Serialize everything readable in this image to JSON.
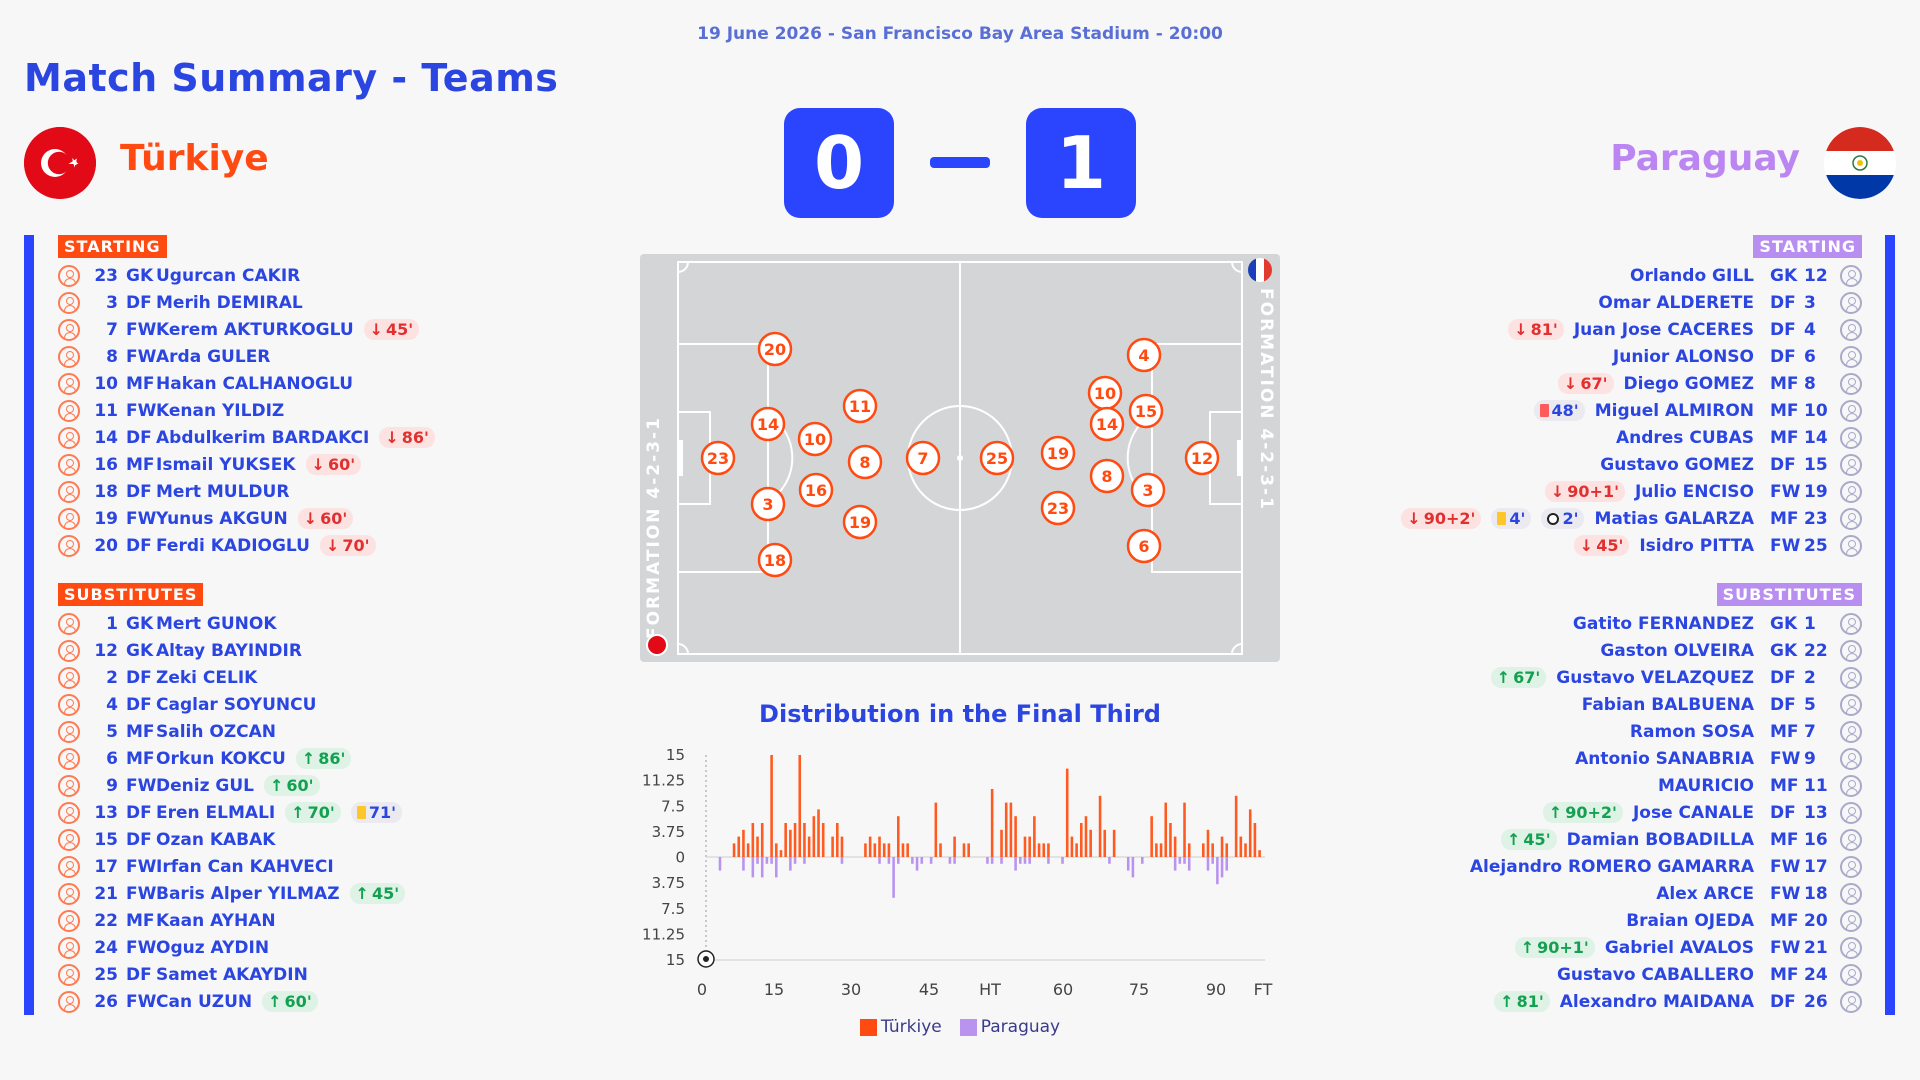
{
  "header": {
    "subtitle": "19 June 2026 - San Francisco Bay Area Stadium - 20:00",
    "title": "Match Summary - Teams"
  },
  "home": {
    "name": "Türkiye",
    "score": "0",
    "color": "#ff4b12",
    "formation_label": "FORMATION 4-2-3-1",
    "starting_label": "STARTING",
    "subs_label": "SUBSTITUTES",
    "starting": [
      {
        "num": "23",
        "pos": "GK",
        "name": "Ugurcan CAKIR",
        "events": []
      },
      {
        "num": "3",
        "pos": "DF",
        "name": "Merih DEMIRAL",
        "events": []
      },
      {
        "num": "7",
        "pos": "FW",
        "name": "Kerem AKTURKOGLU",
        "events": [
          {
            "type": "off",
            "text": "45'"
          }
        ]
      },
      {
        "num": "8",
        "pos": "FW",
        "name": "Arda GULER",
        "events": []
      },
      {
        "num": "10",
        "pos": "MF",
        "name": "Hakan CALHANOGLU",
        "events": []
      },
      {
        "num": "11",
        "pos": "FW",
        "name": "Kenan YILDIZ",
        "events": []
      },
      {
        "num": "14",
        "pos": "DF",
        "name": "Abdulkerim BARDAKCI",
        "events": [
          {
            "type": "off",
            "text": "86'"
          }
        ]
      },
      {
        "num": "16",
        "pos": "MF",
        "name": "Ismail YUKSEK",
        "events": [
          {
            "type": "off",
            "text": "60'"
          }
        ]
      },
      {
        "num": "18",
        "pos": "DF",
        "name": "Mert MULDUR",
        "events": []
      },
      {
        "num": "19",
        "pos": "FW",
        "name": "Yunus AKGUN",
        "events": [
          {
            "type": "off",
            "text": "60'"
          }
        ]
      },
      {
        "num": "20",
        "pos": "DF",
        "name": "Ferdi KADIOGLU",
        "events": [
          {
            "type": "off",
            "text": "70'"
          }
        ]
      }
    ],
    "subs": [
      {
        "num": "1",
        "pos": "GK",
        "name": "Mert GUNOK",
        "events": []
      },
      {
        "num": "12",
        "pos": "GK",
        "name": "Altay BAYINDIR",
        "events": []
      },
      {
        "num": "2",
        "pos": "DF",
        "name": "Zeki CELIK",
        "events": []
      },
      {
        "num": "4",
        "pos": "DF",
        "name": "Caglar SOYUNCU",
        "events": []
      },
      {
        "num": "5",
        "pos": "MF",
        "name": "Salih OZCAN",
        "events": []
      },
      {
        "num": "6",
        "pos": "MF",
        "name": "Orkun KOKCU",
        "events": [
          {
            "type": "on",
            "text": "86'"
          }
        ]
      },
      {
        "num": "9",
        "pos": "FW",
        "name": "Deniz GUL",
        "events": [
          {
            "type": "on",
            "text": "60'"
          }
        ]
      },
      {
        "num": "13",
        "pos": "DF",
        "name": "Eren ELMALI",
        "events": [
          {
            "type": "on",
            "text": "70'"
          },
          {
            "type": "yc",
            "text": "71'"
          }
        ]
      },
      {
        "num": "15",
        "pos": "DF",
        "name": "Ozan KABAK",
        "events": []
      },
      {
        "num": "17",
        "pos": "FW",
        "name": "Irfan Can KAHVECI",
        "events": []
      },
      {
        "num": "21",
        "pos": "FW",
        "name": "Baris Alper YILMAZ",
        "events": [
          {
            "type": "on",
            "text": "45'"
          }
        ]
      },
      {
        "num": "22",
        "pos": "MF",
        "name": "Kaan AYHAN",
        "events": []
      },
      {
        "num": "24",
        "pos": "FW",
        "name": "Oguz AYDIN",
        "events": []
      },
      {
        "num": "25",
        "pos": "DF",
        "name": "Samet AKAYDIN",
        "events": []
      },
      {
        "num": "26",
        "pos": "FW",
        "name": "Can UZUN",
        "events": [
          {
            "type": "on",
            "text": "60'"
          }
        ]
      }
    ],
    "pitch_numbers": [
      "23",
      "20",
      "14",
      "3",
      "18",
      "10",
      "16",
      "11",
      "8",
      "19",
      "7"
    ]
  },
  "away": {
    "name": "Paraguay",
    "score": "1",
    "color": "#bb86f2",
    "formation_label": "FORMATION 4-2-3-1",
    "starting_label": "STARTING",
    "subs_label": "SUBSTITUTES",
    "starting": [
      {
        "num": "12",
        "pos": "GK",
        "name": "Orlando GILL",
        "events": []
      },
      {
        "num": "3",
        "pos": "DF",
        "name": "Omar ALDERETE",
        "events": []
      },
      {
        "num": "4",
        "pos": "DF",
        "name": "Juan Jose CACERES",
        "events": [
          {
            "type": "off",
            "text": "81'"
          }
        ]
      },
      {
        "num": "6",
        "pos": "DF",
        "name": "Junior ALONSO",
        "events": []
      },
      {
        "num": "8",
        "pos": "MF",
        "name": "Diego GOMEZ",
        "events": [
          {
            "type": "off",
            "text": "67'"
          }
        ]
      },
      {
        "num": "10",
        "pos": "MF",
        "name": "Miguel ALMIRON",
        "events": [
          {
            "type": "rc",
            "text": "48'"
          }
        ]
      },
      {
        "num": "14",
        "pos": "MF",
        "name": "Andres CUBAS",
        "events": []
      },
      {
        "num": "15",
        "pos": "DF",
        "name": "Gustavo GOMEZ",
        "events": []
      },
      {
        "num": "19",
        "pos": "FW",
        "name": "Julio ENCISO",
        "events": [
          {
            "type": "off",
            "text": "90+1'"
          }
        ]
      },
      {
        "num": "23",
        "pos": "MF",
        "name": "Matias GALARZA",
        "events": [
          {
            "type": "off",
            "text": "90+2'"
          },
          {
            "type": "yc",
            "text": "4'"
          },
          {
            "type": "goal",
            "text": "2'"
          }
        ]
      },
      {
        "num": "25",
        "pos": "FW",
        "name": "Isidro PITTA",
        "events": [
          {
            "type": "off",
            "text": "45'"
          }
        ]
      }
    ],
    "subs": [
      {
        "num": "1",
        "pos": "GK",
        "name": "Gatito FERNANDEZ",
        "events": []
      },
      {
        "num": "22",
        "pos": "GK",
        "name": "Gaston OLVEIRA",
        "events": []
      },
      {
        "num": "2",
        "pos": "DF",
        "name": "Gustavo VELAZQUEZ",
        "events": [
          {
            "type": "on",
            "text": "67'"
          }
        ]
      },
      {
        "num": "5",
        "pos": "DF",
        "name": "Fabian BALBUENA",
        "events": []
      },
      {
        "num": "7",
        "pos": "MF",
        "name": "Ramon SOSA",
        "events": []
      },
      {
        "num": "9",
        "pos": "FW",
        "name": "Antonio SANABRIA",
        "events": []
      },
      {
        "num": "11",
        "pos": "MF",
        "name": "MAURICIO",
        "events": []
      },
      {
        "num": "13",
        "pos": "DF",
        "name": "Jose CANALE",
        "events": [
          {
            "type": "on",
            "text": "90+2'"
          }
        ]
      },
      {
        "num": "16",
        "pos": "MF",
        "name": "Damian BOBADILLA",
        "events": [
          {
            "type": "on",
            "text": "45'"
          }
        ]
      },
      {
        "num": "17",
        "pos": "FW",
        "name": "Alejandro ROMERO GAMARRA",
        "events": []
      },
      {
        "num": "18",
        "pos": "FW",
        "name": "Alex ARCE",
        "events": []
      },
      {
        "num": "20",
        "pos": "MF",
        "name": "Braian OJEDA",
        "events": []
      },
      {
        "num": "21",
        "pos": "FW",
        "name": "Gabriel AVALOS",
        "events": [
          {
            "type": "on",
            "text": "90+1'"
          }
        ]
      },
      {
        "num": "24",
        "pos": "MF",
        "name": "Gustavo CABALLERO",
        "events": []
      },
      {
        "num": "26",
        "pos": "DF",
        "name": "Alexandro MAIDANA",
        "events": [
          {
            "type": "on",
            "text": "81'"
          }
        ]
      }
    ],
    "pitch_numbers": [
      "12",
      "4",
      "15",
      "3",
      "6",
      "10",
      "14",
      "8",
      "23",
      "19",
      "25"
    ]
  },
  "chart_data": {
    "type": "bar",
    "title": "Distribution in the Final Third",
    "x_ticks": [
      "0",
      "15",
      "30",
      "45",
      "HT",
      "60",
      "75",
      "90",
      "FT"
    ],
    "y_ticks": [
      "15",
      "11.25",
      "7.5",
      "3.75",
      "0",
      "3.75",
      "7.5",
      "11.25",
      "15"
    ],
    "ylim": [
      -15,
      15
    ],
    "series": [
      {
        "name": "Türkiye",
        "color": "#ff5a1f",
        "values": [
          0,
          0,
          0,
          0,
          2,
          3,
          4,
          2,
          5,
          3,
          5,
          0,
          15,
          2,
          1,
          5,
          4,
          5,
          15,
          5,
          3,
          6,
          7,
          5,
          0,
          3,
          5,
          3,
          0,
          0,
          0,
          0,
          2,
          3,
          2,
          3,
          2,
          2,
          0,
          6,
          2,
          2,
          0,
          0,
          0,
          0,
          0,
          8,
          2,
          0,
          0,
          3,
          0,
          2,
          2,
          0,
          0,
          0,
          0,
          10,
          0,
          4,
          8,
          8,
          6,
          0,
          3,
          3,
          6,
          2,
          2,
          2,
          0,
          0,
          0,
          13,
          3,
          2,
          5,
          6,
          4,
          0,
          9,
          4,
          0,
          4,
          0,
          0,
          0,
          0,
          0,
          0,
          0,
          6,
          2,
          2,
          8,
          5,
          3,
          0,
          8,
          2,
          0,
          0,
          2,
          4,
          2,
          0,
          3,
          2,
          0,
          9,
          3,
          2,
          7,
          5,
          1
        ]
      },
      {
        "name": "Paraguay",
        "color": "#b994ef",
        "values": [
          0,
          -2,
          0,
          0,
          0,
          0,
          -2,
          0,
          -3,
          -1,
          -3,
          -1,
          -1,
          -3,
          0,
          0,
          -2,
          -1,
          0,
          -1,
          0,
          0,
          0,
          0,
          0,
          0,
          0,
          -1,
          0,
          0,
          0,
          0,
          0,
          0,
          0,
          -1,
          0,
          -1,
          -6,
          -1,
          0,
          0,
          -1,
          -2,
          -1,
          0,
          -1,
          0,
          0,
          0,
          -1,
          -1,
          0,
          0,
          0,
          0,
          0,
          0,
          -1,
          -1,
          0,
          -1,
          0,
          0,
          -2,
          -1,
          -1,
          -1,
          0,
          0,
          0,
          -1,
          0,
          0,
          -1,
          0,
          0,
          0,
          0,
          0,
          0,
          0,
          0,
          0,
          -1,
          0,
          0,
          0,
          -2,
          -3,
          0,
          -1,
          0,
          0,
          0,
          0,
          0,
          0,
          -2,
          -1,
          -1,
          -2,
          0,
          0,
          0,
          -2,
          -1,
          -4,
          -3,
          -2,
          0,
          0,
          0,
          0,
          0,
          0,
          0,
          0,
          0
        ]
      }
    ]
  }
}
